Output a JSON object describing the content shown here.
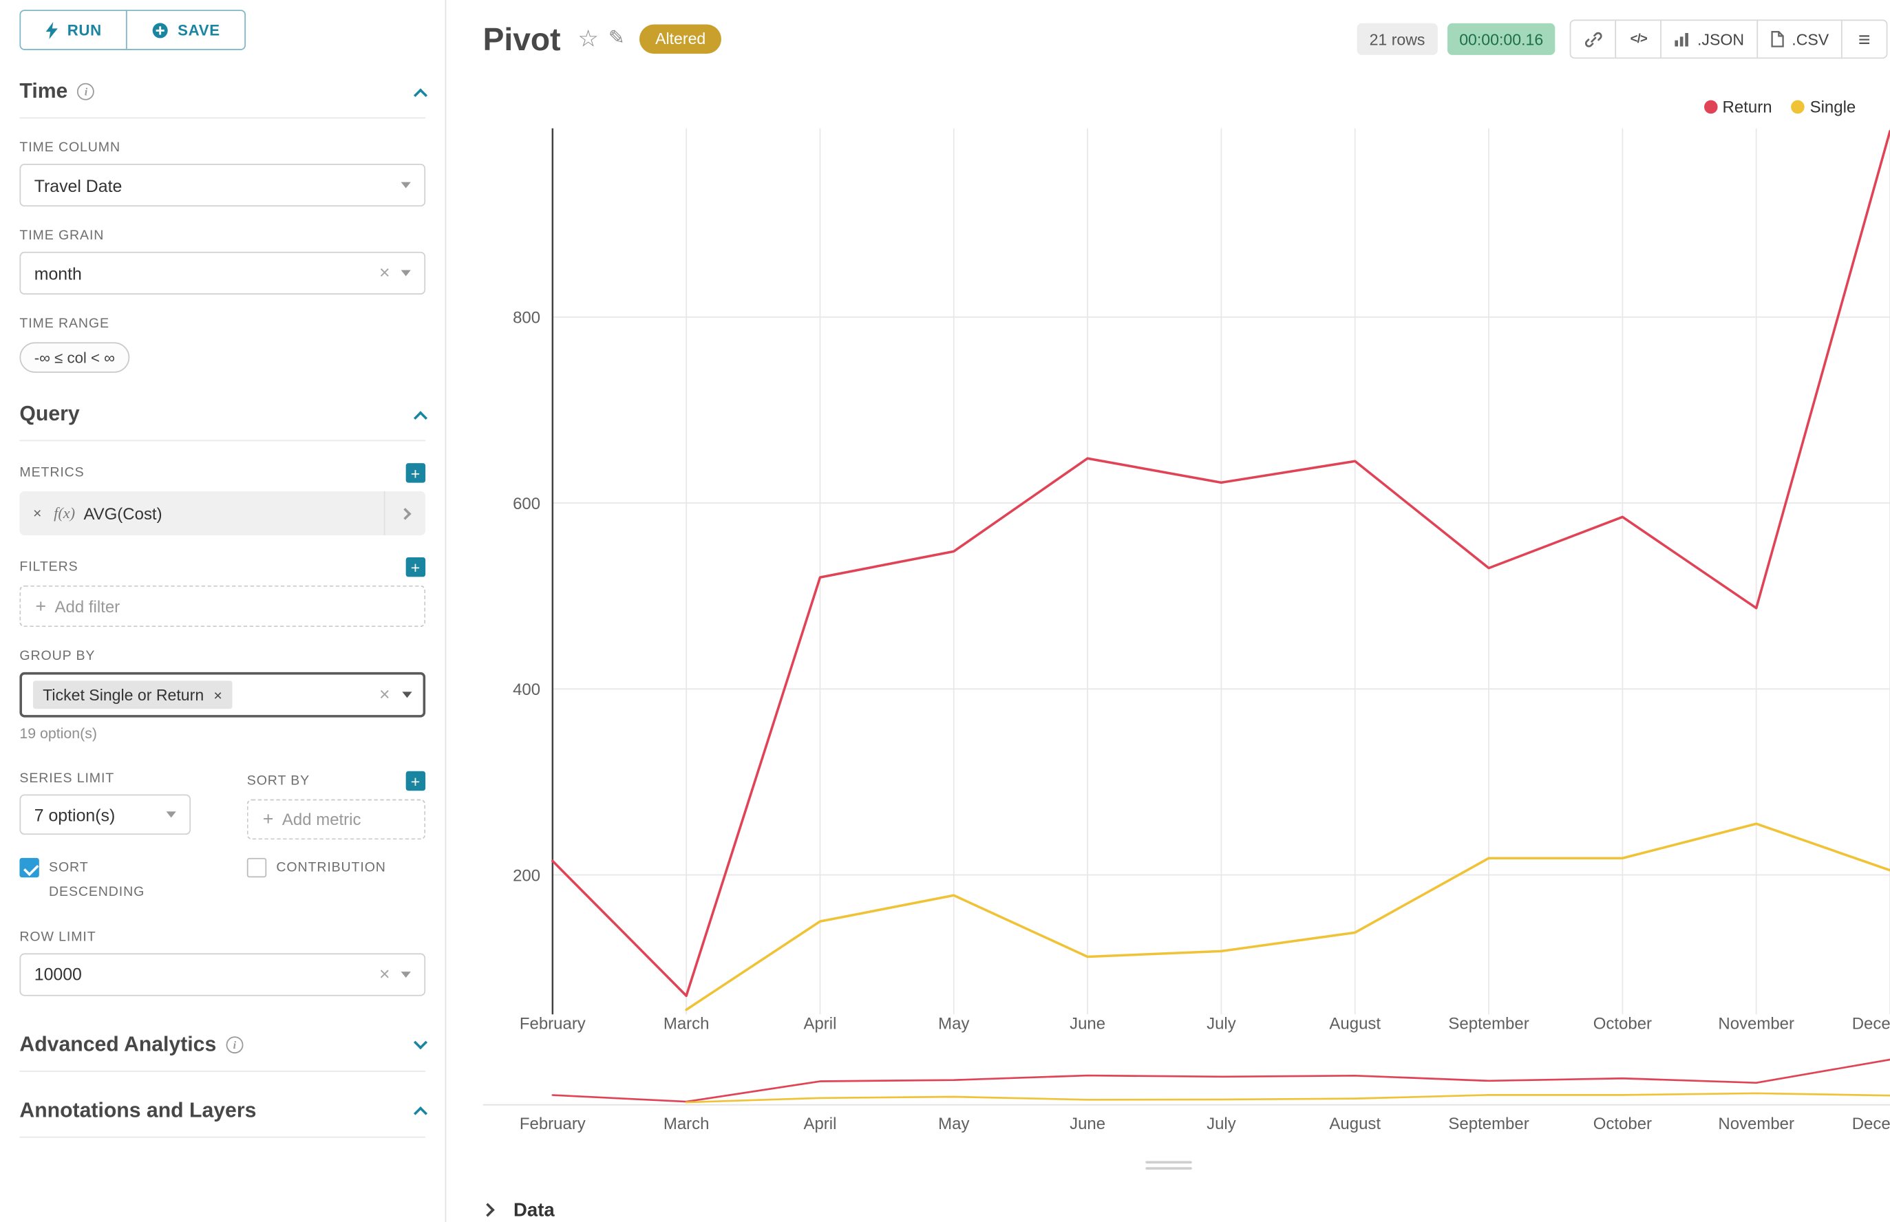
{
  "sidebar": {
    "run_label": "RUN",
    "save_label": "SAVE",
    "time": {
      "title": "Time",
      "column_label": "TIME COLUMN",
      "column_value": "Travel Date",
      "grain_label": "TIME GRAIN",
      "grain_value": "month",
      "range_label": "TIME RANGE",
      "range_value": "-∞ ≤ col < ∞"
    },
    "query": {
      "title": "Query",
      "metrics_label": "METRICS",
      "metric_prefix": "f(x)",
      "metric_name": "AVG(Cost)",
      "filters_label": "FILTERS",
      "add_filter": "Add filter",
      "group_by_label": "GROUP BY",
      "group_by_chip": "Ticket Single or Return",
      "group_by_hint": "19 option(s)",
      "series_limit_label": "SERIES LIMIT",
      "series_limit_value": "7 option(s)",
      "sort_by_label": "SORT BY",
      "add_metric": "Add metric",
      "sort_descending_label": "SORT DESCENDING",
      "sort_descending_checked": true,
      "contribution_label": "CONTRIBUTION",
      "contribution_checked": false,
      "row_limit_label": "ROW LIMIT",
      "row_limit_value": "10000"
    },
    "advanced_analytics_title": "Advanced Analytics",
    "annotations_title": "Annotations and Layers"
  },
  "header": {
    "title": "Pivot",
    "badge": "Altered",
    "rows": "21 rows",
    "timer": "00:00:00.16",
    "json_label": ".JSON",
    "csv_label": ".CSV"
  },
  "data_panel": {
    "title": "Data"
  },
  "chart_data": {
    "type": "line",
    "title": "Pivot",
    "x": [
      "February",
      "March",
      "April",
      "May",
      "June",
      "July",
      "August",
      "September",
      "October",
      "November",
      "December"
    ],
    "series": [
      {
        "name": "Return",
        "color": "#e04355",
        "values": [
          215,
          70,
          520,
          548,
          648,
          622,
          645,
          530,
          585,
          487,
          1000
        ]
      },
      {
        "name": "Single",
        "color": "#f0c236",
        "values": [
          null,
          55,
          150,
          178,
          112,
          118,
          138,
          218,
          218,
          255,
          205
        ]
      }
    ],
    "yticks": [
      200,
      400,
      600,
      800
    ],
    "ylim": [
      50,
      1003
    ],
    "grid": true,
    "legend_position": "top-right",
    "has_range_selector_minimap": true
  }
}
